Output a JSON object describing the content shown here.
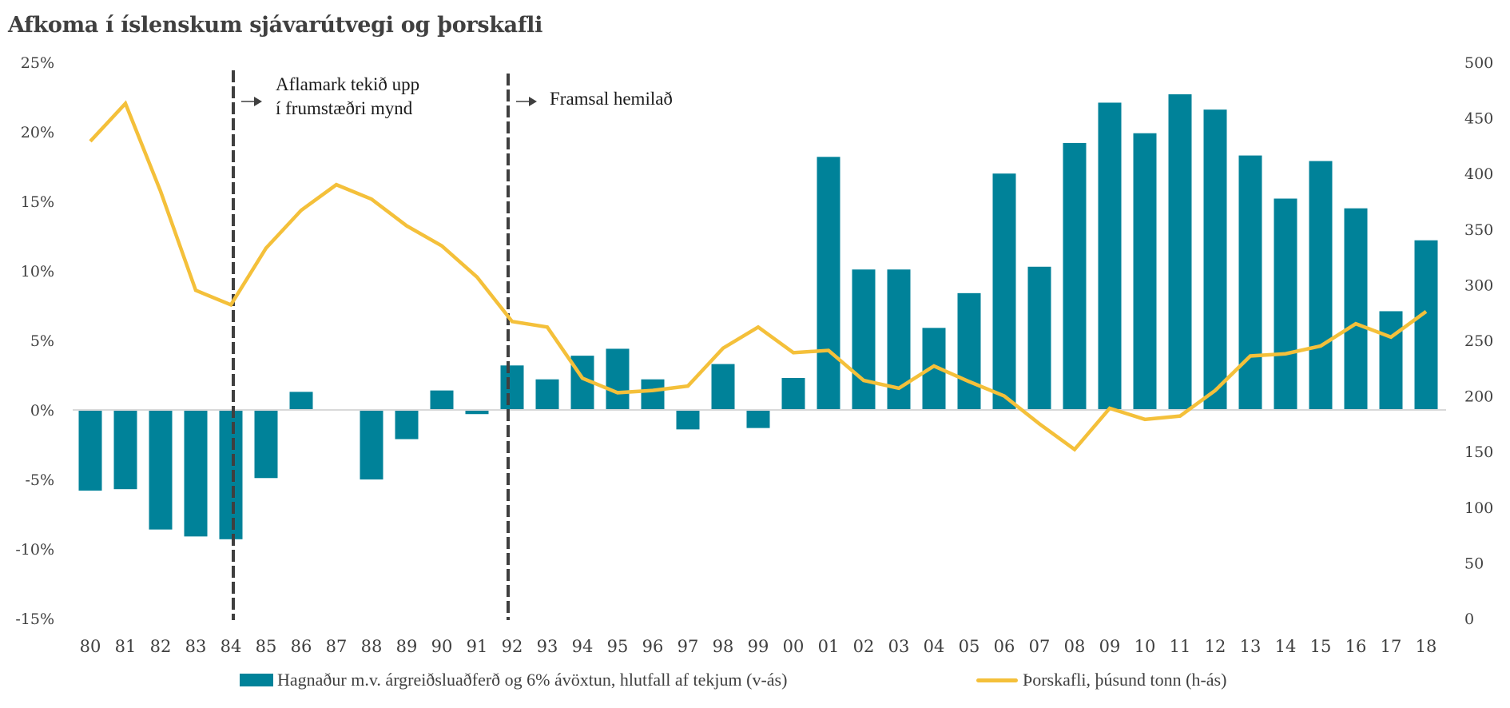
{
  "chart_data": {
    "type": "bar+line",
    "title": "Afkoma í íslenskum sjávarútvegi og þorskafli",
    "categories": [
      "80",
      "81",
      "82",
      "83",
      "84",
      "85",
      "86",
      "87",
      "88",
      "89",
      "90",
      "91",
      "92",
      "93",
      "94",
      "95",
      "96",
      "97",
      "98",
      "99",
      "00",
      "01",
      "02",
      "03",
      "04",
      "05",
      "06",
      "07",
      "08",
      "09",
      "10",
      "11",
      "12",
      "13",
      "14",
      "15",
      "16",
      "17",
      "18"
    ],
    "series": [
      {
        "name": "Hagnaður m.v. árgreiðsluaðferð og 6% ávöxtun, hlutfall af tekjum (v-ás)",
        "type": "bar",
        "axis": "left",
        "unit": "%",
        "color": "#008299",
        "values": [
          -5.8,
          -5.7,
          -8.6,
          -9.1,
          -9.3,
          -4.9,
          1.3,
          0,
          -5.0,
          -2.1,
          1.4,
          -0.3,
          3.2,
          2.2,
          3.9,
          4.4,
          2.2,
          -1.4,
          3.3,
          -1.3,
          2.3,
          18.2,
          10.1,
          10.1,
          5.9,
          8.4,
          17.0,
          10.3,
          19.2,
          22.1,
          19.9,
          22.7,
          21.6,
          18.3,
          15.2,
          17.9,
          14.5,
          7.1,
          12.2
        ]
      },
      {
        "name": "Þorskafli, þúsund tonn  (h-ás)",
        "type": "line",
        "axis": "right",
        "unit": "þúsund tonn",
        "color": "#F4C03A",
        "values": [
          429,
          463,
          384,
          295,
          282,
          333,
          367,
          390,
          377,
          353,
          335,
          307,
          267,
          262,
          216,
          203,
          205,
          209,
          243,
          262,
          239,
          241,
          214,
          207,
          227,
          213,
          200,
          175,
          152,
          189,
          179,
          182,
          205,
          236,
          238,
          245,
          265,
          253,
          276
        ]
      }
    ],
    "left_axis": {
      "ylim": [
        -15,
        25
      ],
      "ticks": [
        25,
        20,
        15,
        10,
        5,
        0,
        -5,
        -10,
        -15
      ],
      "tick_labels": [
        "25%",
        "20%",
        "15%",
        "10%",
        "5%",
        "0%",
        "-5%",
        "-10%",
        "-15%"
      ]
    },
    "right_axis": {
      "ylim": [
        0,
        500
      ],
      "ticks": [
        500,
        450,
        400,
        350,
        300,
        250,
        200,
        150,
        100,
        50,
        0
      ],
      "tick_labels": [
        "500",
        "450",
        "400",
        "350",
        "300",
        "250",
        "200",
        "150",
        "100",
        "50",
        "0"
      ]
    },
    "xlabel": "",
    "ylabel": "",
    "grid": false,
    "zero_line": true,
    "legend_position": "bottom",
    "annotations": [
      {
        "at_category": "84",
        "style": "dashed-vertical-line",
        "lines": [
          "Aflamark tekið upp",
          "í frumstæðri mynd"
        ]
      },
      {
        "at_category": "91",
        "style": "dashed-vertical-line",
        "lines": [
          "Framsal hemilað"
        ]
      }
    ]
  },
  "legend": {
    "bar_label": "Hagnaður m.v. árgreiðsluaðferð og 6% ávöxtun, hlutfall af tekjum (v-ás)",
    "line_label": "Þorskafli, þúsund tonn  (h-ás)"
  },
  "colors": {
    "bar": "#008299",
    "line": "#F4C03A",
    "text": "#404040",
    "annotation_line": "#3f3f3f",
    "zero_line": "#d9d9d9"
  }
}
